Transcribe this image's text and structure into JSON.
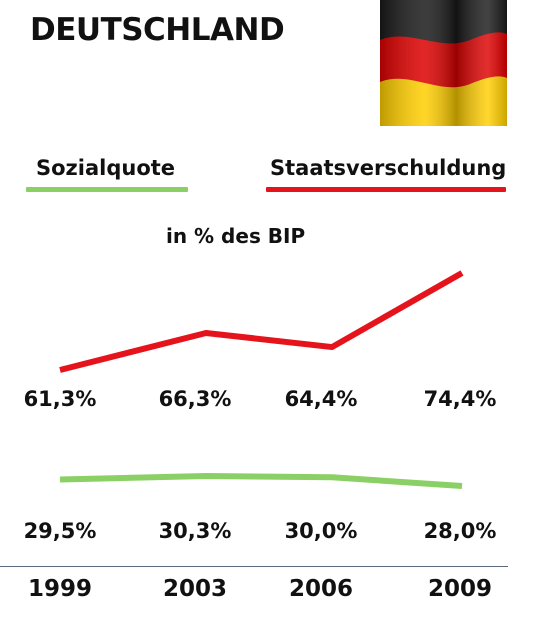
{
  "header": {
    "title": "DEUTSCHLAND"
  },
  "flag": {
    "name": "german-flag",
    "colors": [
      "#1a1a1a",
      "#dd0000",
      "#ffce00"
    ]
  },
  "legend": {
    "items": [
      {
        "label": "Sozialquote",
        "color": "#8bd065"
      },
      {
        "label": "Staatsverschuldung",
        "color": "#e5141c"
      }
    ]
  },
  "unit_label": "in % des BIP",
  "chart_data": {
    "type": "line",
    "categories": [
      "1999",
      "2003",
      "2006",
      "2009"
    ],
    "series": [
      {
        "name": "Staatsverschuldung",
        "color": "#e5141c",
        "values": [
          61.3,
          66.3,
          64.4,
          74.4
        ],
        "labels": [
          "61,3%",
          "66,3%",
          "64,4%",
          "74,4%"
        ]
      },
      {
        "name": "Sozialquote",
        "color": "#8bd065",
        "values": [
          29.5,
          30.3,
          30.0,
          28.0
        ],
        "labels": [
          "29,5%",
          "30,3%",
          "30,0%",
          "28,0%"
        ]
      }
    ],
    "title": "DEUTSCHLAND",
    "ylabel": "in % des BIP",
    "grid": false
  }
}
